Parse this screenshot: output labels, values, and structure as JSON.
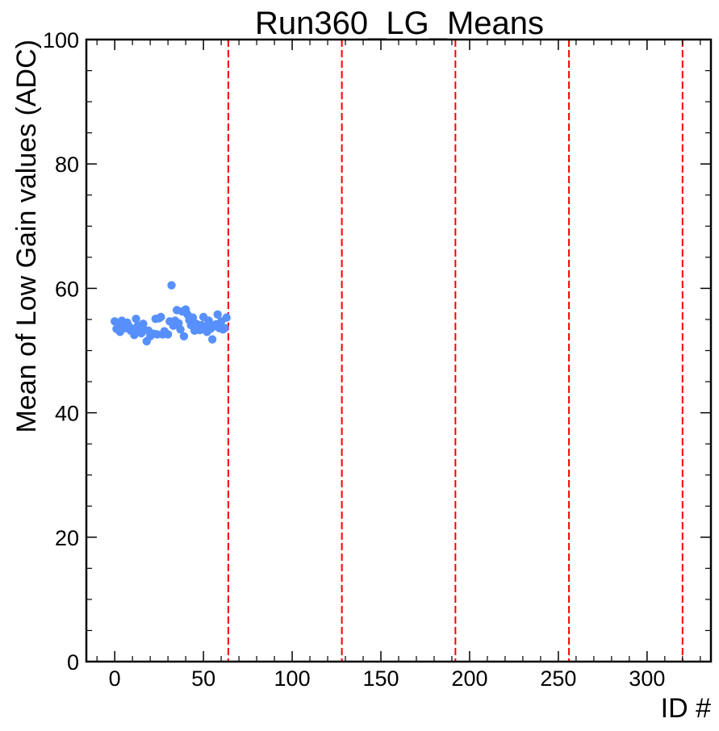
{
  "chart_data": {
    "type": "scatter",
    "title": "Run360_LG_Means",
    "xlabel": "ID #",
    "ylabel": "Mean of Low Gain values (ADC)",
    "xlim": [
      -16,
      336
    ],
    "ylim": [
      0,
      100
    ],
    "x_ticks": [
      0,
      50,
      100,
      150,
      200,
      250,
      300
    ],
    "y_ticks": [
      0,
      20,
      40,
      60,
      80,
      100
    ],
    "x_tick_labels": [
      "0",
      "50",
      "100",
      "150",
      "200",
      "250",
      "300"
    ],
    "y_tick_labels": [
      "0",
      "20",
      "40",
      "60",
      "80",
      "100"
    ],
    "grid": false,
    "point_color": "#5790fc",
    "vline_color": "#ff0000",
    "vlines": [
      64,
      128,
      192,
      256,
      320
    ],
    "points": [
      [
        0,
        54.7
      ],
      [
        1,
        53.5
      ],
      [
        2,
        54.0
      ],
      [
        3,
        53.0
      ],
      [
        4,
        54.8
      ],
      [
        5,
        54.3
      ],
      [
        6,
        53.6
      ],
      [
        7,
        54.5
      ],
      [
        8,
        53.9
      ],
      [
        9,
        53.2
      ],
      [
        10,
        53.5
      ],
      [
        11,
        52.5
      ],
      [
        12,
        55.1
      ],
      [
        13,
        54.0
      ],
      [
        14,
        53.0
      ],
      [
        15,
        52.8
      ],
      [
        16,
        54.3
      ],
      [
        17,
        53.3
      ],
      [
        18,
        51.5
      ],
      [
        19,
        53.2
      ],
      [
        20,
        52.3
      ],
      [
        21,
        52.7
      ],
      [
        22,
        52.7
      ],
      [
        23,
        55.1
      ],
      [
        24,
        52.6
      ],
      [
        25,
        55.2
      ],
      [
        26,
        55.4
      ],
      [
        27,
        52.6
      ],
      [
        28,
        53.1
      ],
      [
        29,
        52.7
      ],
      [
        30,
        52.6
      ],
      [
        31,
        54.7
      ],
      [
        32,
        60.5
      ],
      [
        33,
        54.0
      ],
      [
        34,
        54.8
      ],
      [
        35,
        56.5
      ],
      [
        36,
        54.4
      ],
      [
        37,
        53.4
      ],
      [
        38,
        56.3
      ],
      [
        39,
        52.3
      ],
      [
        40,
        56.6
      ],
      [
        41,
        55.8
      ],
      [
        42,
        54.9
      ],
      [
        43,
        54.1
      ],
      [
        44,
        55.3
      ],
      [
        45,
        53.2
      ],
      [
        46,
        54.3
      ],
      [
        47,
        53.8
      ],
      [
        48,
        53.3
      ],
      [
        49,
        54.1
      ],
      [
        50,
        55.4
      ],
      [
        51,
        53.7
      ],
      [
        52,
        53.0
      ],
      [
        53,
        54.8
      ],
      [
        54,
        53.5
      ],
      [
        55,
        51.8
      ],
      [
        56,
        53.9
      ],
      [
        57,
        54.2
      ],
      [
        58,
        55.8
      ],
      [
        59,
        53.6
      ],
      [
        60,
        54.7
      ],
      [
        61,
        53.4
      ],
      [
        62,
        53.6
      ],
      [
        63,
        55.3
      ]
    ]
  }
}
